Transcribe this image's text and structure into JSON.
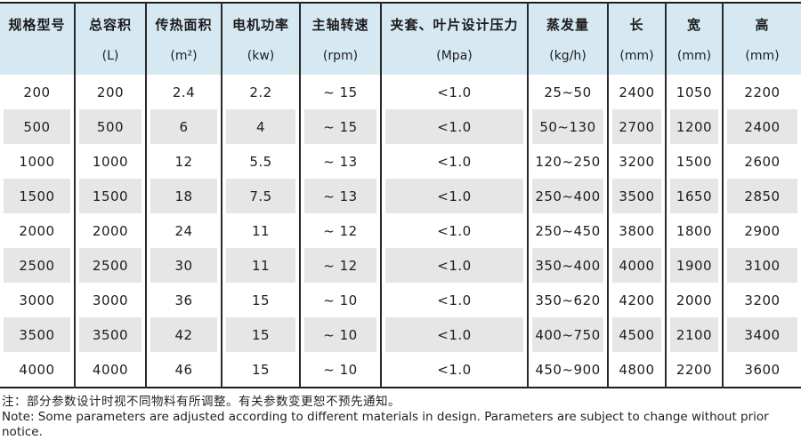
{
  "table": {
    "columns": [
      {
        "name": "规格型号",
        "unit": ""
      },
      {
        "name": "总容积",
        "unit": "(L)"
      },
      {
        "name": "传热面积",
        "unit": "(m²)"
      },
      {
        "name": "电机功率",
        "unit": "(kw)"
      },
      {
        "name": "主轴转速",
        "unit": "(rpm)"
      },
      {
        "name": "夹套、叶片设计压力",
        "unit": "(Mpa)"
      },
      {
        "name": "蒸发量",
        "unit": "(kg/h)"
      },
      {
        "name": "长",
        "unit": "(mm)"
      },
      {
        "name": "宽",
        "unit": "(mm)"
      },
      {
        "name": "高",
        "unit": "(mm)"
      }
    ],
    "rows": [
      [
        "200",
        "200",
        "2.4",
        "2.2",
        "~ 15",
        "<1.0",
        "25~50",
        "2400",
        "1050",
        "2200"
      ],
      [
        "500",
        "500",
        "6",
        "4",
        "~ 15",
        "<1.0",
        "50~130",
        "2700",
        "1200",
        "2400"
      ],
      [
        "1000",
        "1000",
        "12",
        "5.5",
        "~ 13",
        "<1.0",
        "120~250",
        "3200",
        "1500",
        "2600"
      ],
      [
        "1500",
        "1500",
        "18",
        "7.5",
        "~ 13",
        "<1.0",
        "250~400",
        "3500",
        "1650",
        "2850"
      ],
      [
        "2000",
        "2000",
        "24",
        "11",
        "~ 12",
        "<1.0",
        "250~450",
        "3800",
        "1800",
        "2900"
      ],
      [
        "2500",
        "2500",
        "30",
        "11",
        "~ 12",
        "<1.0",
        "350~400",
        "4000",
        "1900",
        "3100"
      ],
      [
        "3000",
        "3000",
        "36",
        "15",
        "~ 10",
        "<1.0",
        "350~620",
        "4200",
        "2000",
        "3200"
      ],
      [
        "3500",
        "3500",
        "42",
        "15",
        "~ 10",
        "<1.0",
        "400~750",
        "4500",
        "2100",
        "3400"
      ],
      [
        "4000",
        "4000",
        "46",
        "15",
        "~ 10",
        "<1.0",
        "450~900",
        "4800",
        "2200",
        "3600"
      ]
    ]
  },
  "notes": {
    "zh": "注：部分参数设计时视不同物料有所调整。有关参数变更恕不预先通知。",
    "en": "Note: Some parameters are adjusted according to different materials in design. Parameters are subject to change without prior notice."
  },
  "colors": {
    "header_bg": "#d6e9f2",
    "stripe_bg": "#e6e6e6",
    "border": "#1c1c1c"
  }
}
